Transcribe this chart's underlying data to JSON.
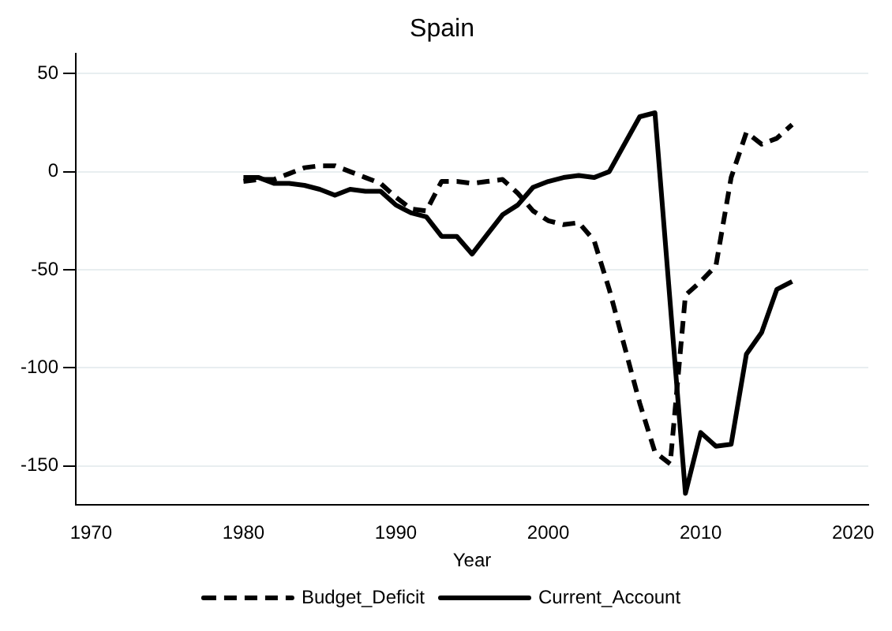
{
  "chart_data": {
    "type": "line",
    "title": "Spain",
    "xlabel": "Year",
    "x": [
      1980,
      1981,
      1982,
      1983,
      1984,
      1985,
      1986,
      1987,
      1988,
      1989,
      1990,
      1991,
      1992,
      1993,
      1994,
      1995,
      1996,
      1997,
      1998,
      1999,
      2000,
      2001,
      2002,
      2003,
      2004,
      2005,
      2006,
      2007,
      2008,
      2009,
      2010,
      2011,
      2012,
      2013,
      2014,
      2015,
      2016
    ],
    "series": [
      {
        "name": "Budget_Deficit",
        "color": "#000000",
        "line_style": "dashed",
        "values": [
          -5,
          -4,
          -4,
          -1,
          2,
          3,
          3,
          0,
          -3,
          -6,
          -13,
          -19,
          -20,
          -5,
          -5,
          -6,
          -5,
          -4,
          -11,
          -20,
          -25,
          -27,
          -26,
          -35,
          -60,
          -89,
          -118,
          -143,
          -149,
          -63,
          -56,
          -48,
          -3,
          20,
          14,
          17,
          24
        ]
      },
      {
        "name": "Current_Account",
        "color": "#000000",
        "line_style": "solid",
        "values": [
          -3,
          -3,
          -6,
          -6,
          -7,
          -9,
          -12,
          -9,
          -10,
          -10,
          -17,
          -21,
          -23,
          -33,
          -33,
          -42,
          -32,
          -22,
          -17,
          -8,
          -5,
          -3,
          -2,
          -3,
          0,
          14,
          28,
          30,
          -67,
          -164,
          -133,
          -140,
          -139,
          -93,
          -82,
          -60,
          -56
        ]
      }
    ],
    "xlim": [
      1969,
      2021
    ],
    "xticks": [
      1970,
      1980,
      1990,
      2000,
      2010,
      2020
    ],
    "ylim": [
      -170,
      60
    ],
    "yticks": [
      -150,
      -100,
      -50,
      0,
      50
    ],
    "grid": "y",
    "legend": "bottom",
    "marker": "none"
  }
}
